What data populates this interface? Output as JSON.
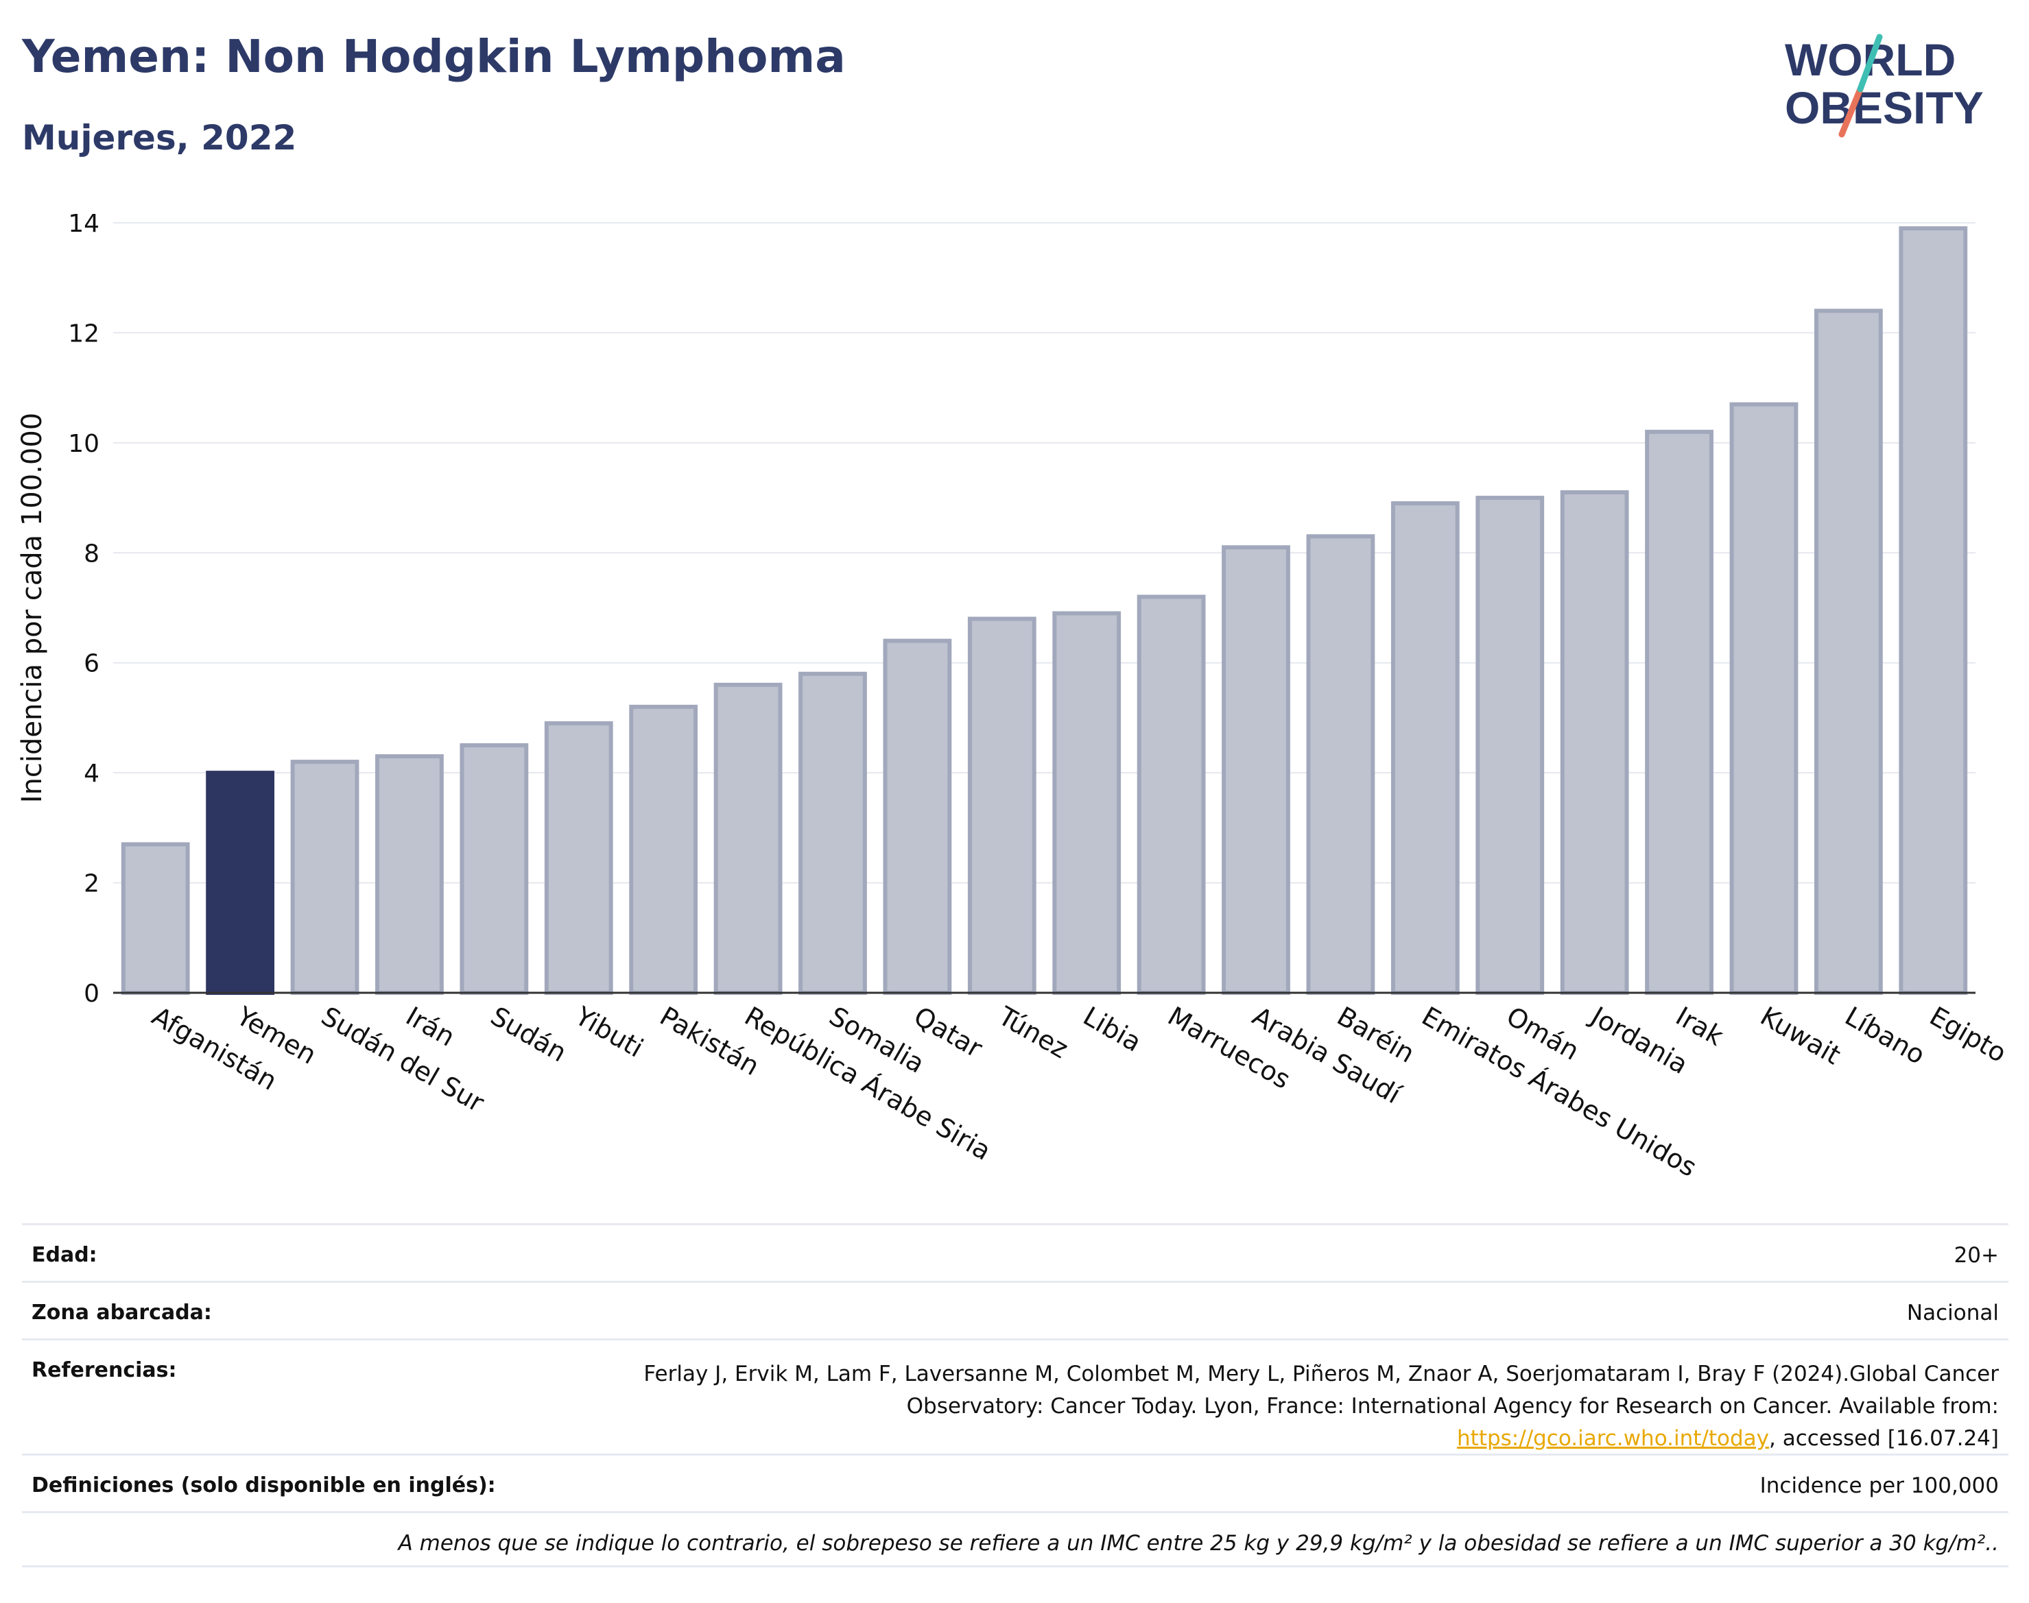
{
  "header": {
    "title": "Yemen: Non Hodgkin Lymphoma",
    "subtitle": "Mujeres, 2022",
    "logo_line1": "WORLD",
    "logo_line2": "OBESITY"
  },
  "chart_data": {
    "type": "bar",
    "title": "Yemen: Non Hodgkin Lymphoma",
    "subtitle": "Mujeres, 2022",
    "xlabel": "",
    "ylabel": "Incidencia por cada 100.000",
    "ylim": [
      0,
      14
    ],
    "yticks": [
      0,
      2,
      4,
      6,
      8,
      10,
      12,
      14
    ],
    "grid": true,
    "highlight": "Yemen",
    "categories": [
      "Afganistán",
      "Yemen",
      "Sudán del Sur",
      "Irán",
      "Sudán",
      "Yibuti",
      "Pakistán",
      "República Árabe Siria",
      "Somalia",
      "Qatar",
      "Túnez",
      "Libia",
      "Marruecos",
      "Arabia Saudí",
      "Baréin",
      "Emiratos Árabes Unidos",
      "Omán",
      "Jordania",
      "Irak",
      "Kuwait",
      "Líbano",
      "Egipto"
    ],
    "values": [
      2.7,
      4.0,
      4.2,
      4.3,
      4.5,
      4.9,
      5.2,
      5.6,
      5.8,
      6.4,
      6.8,
      6.9,
      7.2,
      8.1,
      8.3,
      8.9,
      9.0,
      9.1,
      10.2,
      10.7,
      12.4,
      13.9
    ]
  },
  "colors": {
    "highlight_bar": "#2d3561",
    "other_bar_fill": "#bfc3d0",
    "other_bar_stroke": "#a2a8bc",
    "title": "#2d3a68",
    "grid": "#e6e8ef"
  },
  "info": {
    "edad_label": "Edad:",
    "edad_value": "20+",
    "zona_label": "Zona abarcada:",
    "zona_value": "Nacional",
    "ref_label": "Referencias:",
    "ref_text_1": "Ferlay J, Ervik M, Lam F, Laversanne M, Colombet M, Mery L, Piñeros M, Znaor A, Soerjomataram I, Bray F (2024).Global Cancer Observatory: Cancer Today. Lyon, France: International Agency for Research on Cancer. Available from: ",
    "ref_link": "https://gco.iarc.who.int/today",
    "ref_text_2": ", accessed [16.07.24]",
    "def_label": "Definiciones (solo disponible en inglés):",
    "def_value": "Incidence per 100,000",
    "note": "A menos que se indique lo contrario, el sobrepeso se refiere a un IMC entre 25 kg y 29,9 kg/m² y la obesidad se refiere a un IMC superior a 30 kg/m².."
  }
}
